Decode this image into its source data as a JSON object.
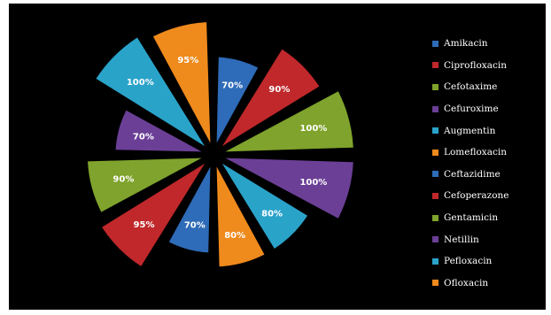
{
  "chart_data": {
    "type": "pie",
    "title": "",
    "categories": [
      "Amikacin",
      "Ciprofloxacin",
      "Cefotaxime",
      "Cefuroxime",
      "Augmentin",
      "Lomefloxacin",
      "Ceftazidime",
      "Cefoperazone",
      "Gentamicin",
      "Netillin",
      "Pefloxacin",
      "Ofloxacin"
    ],
    "values": [
      70,
      90,
      100,
      100,
      80,
      80,
      70,
      95,
      90,
      70,
      100,
      95
    ],
    "labels": [
      "70%",
      "90%",
      "100%",
      "100%",
      "80%",
      "80%",
      "70%",
      "95%",
      "90%",
      "70%",
      "100%",
      "95%"
    ],
    "colors": [
      "#2e6bb8",
      "#c0282b",
      "#7fa32c",
      "#6b3f96",
      "#2aa3c9",
      "#ef8a1c",
      "#2e6bb8",
      "#c0282b",
      "#7fa32c",
      "#6b3f96",
      "#2aa3c9",
      "#ef8a1c"
    ],
    "legend_position": "right",
    "background": "#000000"
  }
}
